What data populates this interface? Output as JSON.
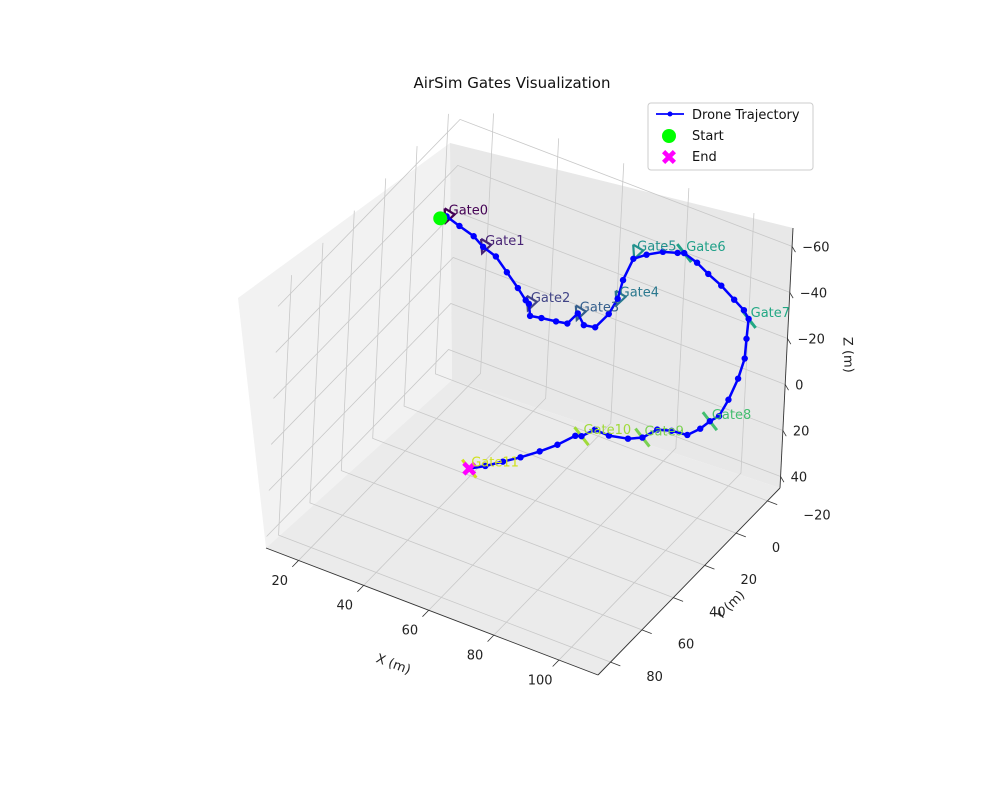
{
  "chart_data": {
    "type": "scatter3d",
    "title": "AirSim Gates Visualization",
    "xlabel": "X (m)",
    "ylabel": "Y (m)",
    "zlabel": "Z (m)",
    "xticks": [
      20,
      40,
      60,
      80,
      100
    ],
    "yticks": [
      -20,
      0,
      20,
      40,
      60,
      80
    ],
    "zticks": [
      -60,
      -40,
      -20,
      0,
      20,
      40
    ],
    "xlim": [
      10,
      112
    ],
    "ylim": [
      -28,
      88
    ],
    "zlim": [
      -68,
      45
    ],
    "zinverted": true,
    "grid": true,
    "legend_position": "top-right",
    "legend": [
      {
        "label": "Drone Trajectory",
        "kind": "line",
        "color": "#0000ff"
      },
      {
        "label": "Start",
        "kind": "circle",
        "color": "#00ff00"
      },
      {
        "label": "End",
        "kind": "x",
        "color": "#ff00ff"
      }
    ],
    "gates": [
      {
        "label": "Gate0",
        "x": 11,
        "y": -20,
        "z": -24,
        "color": "#440154",
        "orientation": "frontal"
      },
      {
        "label": "Gate1",
        "x": 22,
        "y": -21,
        "z": -16,
        "color": "#482475",
        "orientation": "frontal"
      },
      {
        "label": "Gate2",
        "x": 38,
        "y": -18,
        "z": -2,
        "color": "#414487",
        "orientation": "frontal"
      },
      {
        "label": "Gate3",
        "x": 52,
        "y": -20,
        "z": -4,
        "color": "#355f8d",
        "orientation": "frontal"
      },
      {
        "label": "Gate4",
        "x": 62,
        "y": -24,
        "z": -13,
        "color": "#2a788e",
        "orientation": "frontal"
      },
      {
        "label": "Gate5",
        "x": 63,
        "y": -32,
        "z": -28,
        "color": "#21918c",
        "orientation": "frontal"
      },
      {
        "label": "Gate6",
        "x": 76,
        "y": -36,
        "z": -32,
        "color": "#1fa088",
        "orientation": "side"
      },
      {
        "label": "Gate7",
        "x": 100,
        "y": -28,
        "z": -22,
        "color": "#22a884",
        "orientation": "side"
      },
      {
        "label": "Gate8",
        "x": 106,
        "y": 8,
        "z": -6,
        "color": "#44bf70",
        "orientation": "side"
      },
      {
        "label": "Gate9",
        "x": 94,
        "y": 26,
        "z": -5,
        "color": "#7ad151",
        "orientation": "side"
      },
      {
        "label": "Gate10",
        "x": 81,
        "y": 38,
        "z": -7,
        "color": "#a0da39",
        "orientation": "side"
      },
      {
        "label": "Gate11",
        "x": 62,
        "y": 70,
        "z": -5,
        "color": "#d0e11c",
        "orientation": "side"
      }
    ],
    "trajectory": [
      [
        10,
        -18,
        -24
      ],
      [
        11,
        -20,
        -24
      ],
      [
        15,
        -20,
        -22
      ],
      [
        19,
        -21,
        -19
      ],
      [
        22,
        -21,
        -16
      ],
      [
        26,
        -21,
        -14
      ],
      [
        30,
        -20,
        -10
      ],
      [
        34,
        -19,
        -6
      ],
      [
        37,
        -18,
        -3
      ],
      [
        38,
        -18,
        -2
      ],
      [
        39,
        -17,
        2
      ],
      [
        42,
        -18,
        2
      ],
      [
        46,
        -19,
        2
      ],
      [
        49,
        -20,
        2
      ],
      [
        52,
        -20,
        -4
      ],
      [
        54,
        -20,
        0
      ],
      [
        57,
        -21,
        0
      ],
      [
        60,
        -23,
        -6
      ],
      [
        62,
        -24,
        -13
      ],
      [
        62,
        -27,
        -19
      ],
      [
        63,
        -31,
        -26
      ],
      [
        66,
        -33,
        -28
      ],
      [
        70,
        -35,
        -30
      ],
      [
        74,
        -36,
        -31
      ],
      [
        76,
        -36,
        -32
      ],
      [
        80,
        -36,
        -30
      ],
      [
        84,
        -35,
        -28
      ],
      [
        89,
        -33,
        -27
      ],
      [
        94,
        -31,
        -25
      ],
      [
        98,
        -29,
        -24
      ],
      [
        100,
        -28,
        -22
      ],
      [
        101,
        -25,
        -16
      ],
      [
        103,
        -20,
        -12
      ],
      [
        104,
        -14,
        -8
      ],
      [
        105,
        -6,
        -5
      ],
      [
        106,
        2,
        -4
      ],
      [
        106,
        8,
        -6
      ],
      [
        105,
        12,
        -5
      ],
      [
        103,
        16,
        -4
      ],
      [
        100,
        20,
        -7
      ],
      [
        97,
        23,
        -8
      ],
      [
        94,
        26,
        -5
      ],
      [
        91,
        29,
        -5
      ],
      [
        87,
        33,
        -7
      ],
      [
        84,
        36,
        -10
      ],
      [
        81,
        38,
        -7
      ],
      [
        80,
        40,
        -8
      ],
      [
        77,
        45,
        -6
      ],
      [
        74,
        50,
        -5
      ],
      [
        71,
        56,
        -5
      ],
      [
        68,
        61,
        -5
      ],
      [
        65,
        66,
        -5
      ],
      [
        62,
        70,
        -5
      ]
    ],
    "start": {
      "label": "Start",
      "x": 10,
      "y": -18,
      "z": -24
    },
    "end": {
      "label": "End",
      "x": 62,
      "y": 70,
      "z": -5
    }
  }
}
